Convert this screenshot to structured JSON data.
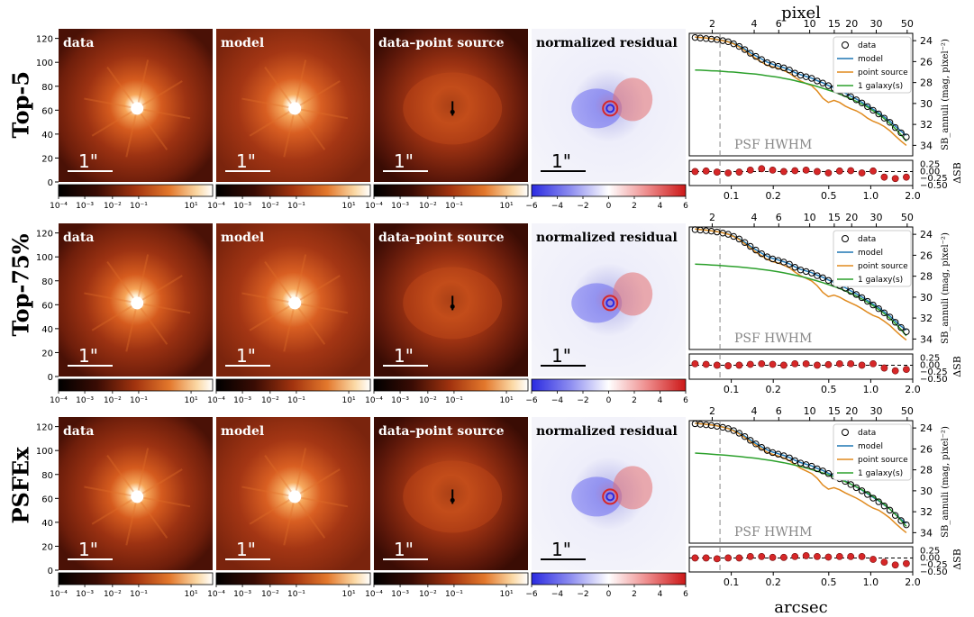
{
  "rows": [
    {
      "label": "Top-5"
    },
    {
      "label": "Top-75%"
    },
    {
      "label": "PSFEx"
    }
  ],
  "panels": {
    "titles": [
      "data",
      "model",
      "data–point source",
      "normalized residual"
    ],
    "scale_bar_label": "1\"",
    "y_ticks": [
      "0",
      "20",
      "40",
      "60",
      "80",
      "100",
      "120"
    ],
    "colorbar_log_ticks": [
      "10⁻⁴",
      "10⁻³",
      "10⁻²",
      "10⁻¹",
      "10¹"
    ],
    "colorbar_res_ticks": [
      "−6",
      "−4",
      "−2",
      "0",
      "2",
      "4",
      "6"
    ]
  },
  "profile": {
    "top_axis_label": "pixel",
    "bottom_axis_label": "arcsec",
    "top_ticks": [
      "2",
      "4",
      "6",
      "10",
      "15",
      "20",
      "30",
      "50"
    ],
    "bottom_ticks": [
      "0.1",
      "0.2",
      "0.5",
      "1.0",
      "2.0"
    ],
    "sb_ticks": [
      "24",
      "26",
      "28",
      "30",
      "32",
      "34"
    ],
    "dsb_ticks": [
      "0.25",
      "0.00",
      "−0.25",
      "−0.50"
    ],
    "ylabel_sb": "SB_annuli (mag, pixel⁻²)",
    "ylabel_dsb": "ΔSB",
    "psf_label": "PSF HWHM",
    "legend": [
      "data",
      "model",
      "point source",
      "1 galaxy(s)"
    ],
    "colors": {
      "data_edge": "#000000",
      "model": "#1f77b4",
      "point_source": "#e08a1e",
      "galaxy": "#2ca02c",
      "residual_dot": "#d62728"
    }
  },
  "chart_data": [
    {
      "type": "line",
      "title": "Top-5",
      "x_unit": "arcsec",
      "x": [
        0.055,
        0.06,
        0.066,
        0.072,
        0.079,
        0.087,
        0.095,
        0.104,
        0.114,
        0.125,
        0.137,
        0.15,
        0.165,
        0.181,
        0.198,
        0.217,
        0.238,
        0.261,
        0.286,
        0.314,
        0.344,
        0.377,
        0.413,
        0.453,
        0.497,
        0.545,
        0.598,
        0.656,
        0.719,
        0.788,
        0.864,
        0.948,
        1.04,
        1.14,
        1.25,
        1.37,
        1.5,
        1.65,
        1.8
      ],
      "series": [
        {
          "name": "data",
          "values": [
            23.7,
            23.75,
            23.8,
            23.85,
            23.9,
            24.0,
            24.1,
            24.3,
            24.55,
            24.85,
            25.2,
            25.5,
            25.8,
            26.1,
            26.3,
            26.45,
            26.6,
            26.8,
            27.1,
            27.3,
            27.45,
            27.6,
            27.85,
            28.05,
            28.3,
            28.55,
            28.8,
            29.05,
            29.35,
            29.65,
            29.95,
            30.3,
            30.65,
            31.0,
            31.4,
            31.8,
            32.3,
            32.8,
            33.2
          ]
        },
        {
          "name": "model",
          "values": [
            23.65,
            23.7,
            23.75,
            23.8,
            23.88,
            23.97,
            24.08,
            24.25,
            24.5,
            24.8,
            25.15,
            25.45,
            25.75,
            26.05,
            26.25,
            26.42,
            26.58,
            26.78,
            27.05,
            27.25,
            27.42,
            27.58,
            27.82,
            28.02,
            28.28,
            28.52,
            28.78,
            29.02,
            29.3,
            29.58,
            29.88,
            30.2,
            30.55,
            30.9,
            31.28,
            31.68,
            32.15,
            32.65,
            33.05
          ]
        },
        {
          "name": "point source",
          "values": [
            23.65,
            23.7,
            23.75,
            23.81,
            23.9,
            24.0,
            24.12,
            24.3,
            24.6,
            24.95,
            25.35,
            25.7,
            26.05,
            26.35,
            26.5,
            26.65,
            26.85,
            27.1,
            27.5,
            27.85,
            28.1,
            28.3,
            28.8,
            29.5,
            29.9,
            29.7,
            29.9,
            30.25,
            30.5,
            30.7,
            31.0,
            31.4,
            31.7,
            31.9,
            32.2,
            32.6,
            33.1,
            33.6,
            34.0
          ]
        },
        {
          "name": "1 galaxy(s)",
          "values": [
            26.8,
            26.82,
            26.85,
            26.88,
            26.9,
            26.93,
            26.97,
            27.0,
            27.05,
            27.1,
            27.15,
            27.2,
            27.27,
            27.35,
            27.42,
            27.5,
            27.6,
            27.7,
            27.82,
            27.95,
            28.08,
            28.22,
            28.38,
            28.55,
            28.72,
            28.9,
            29.1,
            29.32,
            29.55,
            29.8,
            30.05,
            30.35,
            30.7,
            31.05,
            31.45,
            31.9,
            32.4,
            33.0,
            33.6
          ]
        }
      ],
      "residual": {
        "x": [
          0.055,
          0.066,
          0.079,
          0.095,
          0.114,
          0.137,
          0.165,
          0.198,
          0.238,
          0.286,
          0.344,
          0.413,
          0.497,
          0.598,
          0.719,
          0.864,
          1.04,
          1.25,
          1.5,
          1.8
        ],
        "values": [
          0.0,
          0.02,
          -0.02,
          -0.05,
          -0.02,
          0.05,
          0.1,
          0.05,
          0.0,
          0.03,
          0.05,
          0.0,
          -0.05,
          0.02,
          0.03,
          -0.05,
          0.02,
          -0.2,
          -0.25,
          -0.2
        ]
      },
      "xlim": [
        0.05,
        2.0
      ],
      "ylim_sb": [
        35,
        23.3
      ],
      "ylim_dsb": [
        -0.5,
        0.4
      ],
      "psf_hwhm": 0.083
    },
    {
      "type": "line",
      "title": "Top-75%",
      "x_unit": "arcsec",
      "x": [
        0.055,
        0.06,
        0.066,
        0.072,
        0.079,
        0.087,
        0.095,
        0.104,
        0.114,
        0.125,
        0.137,
        0.15,
        0.165,
        0.181,
        0.198,
        0.217,
        0.238,
        0.261,
        0.286,
        0.314,
        0.344,
        0.377,
        0.413,
        0.453,
        0.497,
        0.545,
        0.598,
        0.656,
        0.719,
        0.788,
        0.864,
        0.948,
        1.04,
        1.14,
        1.25,
        1.37,
        1.5,
        1.65,
        1.8
      ],
      "series": [
        {
          "name": "data",
          "values": [
            23.55,
            23.6,
            23.65,
            23.7,
            23.78,
            23.88,
            24.0,
            24.2,
            24.45,
            24.78,
            25.15,
            25.5,
            25.85,
            26.15,
            26.35,
            26.5,
            26.65,
            26.85,
            27.15,
            27.4,
            27.55,
            27.7,
            27.95,
            28.15,
            28.4,
            28.65,
            28.9,
            29.15,
            29.45,
            29.75,
            30.05,
            30.4,
            30.75,
            31.1,
            31.5,
            31.9,
            32.4,
            32.9,
            33.3
          ]
        },
        {
          "name": "model",
          "values": [
            23.5,
            23.55,
            23.6,
            23.66,
            23.74,
            23.84,
            23.97,
            24.17,
            24.42,
            24.75,
            25.12,
            25.47,
            25.8,
            26.1,
            26.3,
            26.46,
            26.62,
            26.82,
            27.1,
            27.35,
            27.5,
            27.66,
            27.9,
            28.1,
            28.36,
            28.6,
            28.86,
            29.1,
            29.4,
            29.68,
            29.98,
            30.32,
            30.66,
            31.0,
            31.4,
            31.8,
            32.28,
            32.78,
            33.15
          ]
        },
        {
          "name": "point source",
          "values": [
            23.5,
            23.55,
            23.6,
            23.66,
            23.75,
            23.86,
            24.0,
            24.2,
            24.5,
            24.9,
            25.3,
            25.7,
            26.05,
            26.4,
            26.6,
            26.75,
            26.95,
            27.2,
            27.6,
            27.95,
            28.2,
            28.45,
            28.9,
            29.55,
            29.95,
            29.8,
            30.0,
            30.3,
            30.55,
            30.8,
            31.1,
            31.45,
            31.75,
            31.95,
            32.3,
            32.7,
            33.2,
            33.7,
            34.1
          ]
        },
        {
          "name": "1 galaxy(s)",
          "values": [
            26.85,
            26.87,
            26.9,
            26.93,
            26.96,
            27.0,
            27.04,
            27.08,
            27.12,
            27.17,
            27.22,
            27.28,
            27.35,
            27.42,
            27.5,
            27.58,
            27.68,
            27.78,
            27.9,
            28.02,
            28.15,
            28.3,
            28.45,
            28.62,
            28.8,
            28.98,
            29.18,
            29.4,
            29.64,
            29.9,
            30.18,
            30.48,
            30.82,
            31.18,
            31.58,
            32.02,
            32.52,
            33.1,
            33.7
          ]
        }
      ],
      "residual": {
        "x": [
          0.055,
          0.066,
          0.079,
          0.095,
          0.114,
          0.137,
          0.165,
          0.198,
          0.238,
          0.286,
          0.344,
          0.413,
          0.497,
          0.598,
          0.719,
          0.864,
          1.04,
          1.25,
          1.5,
          1.8
        ],
        "values": [
          0.05,
          0.03,
          0.0,
          -0.02,
          0.0,
          0.03,
          0.05,
          0.03,
          0.0,
          0.05,
          0.05,
          0.0,
          0.02,
          0.05,
          0.05,
          0.0,
          0.05,
          -0.1,
          -0.2,
          -0.15
        ]
      },
      "xlim": [
        0.05,
        2.0
      ],
      "ylim_sb": [
        35,
        23.3
      ],
      "ylim_dsb": [
        -0.5,
        0.4
      ],
      "psf_hwhm": 0.083
    },
    {
      "type": "line",
      "title": "PSFEx",
      "x_unit": "arcsec",
      "x": [
        0.055,
        0.06,
        0.066,
        0.072,
        0.079,
        0.087,
        0.095,
        0.104,
        0.114,
        0.125,
        0.137,
        0.15,
        0.165,
        0.181,
        0.198,
        0.217,
        0.238,
        0.261,
        0.286,
        0.314,
        0.344,
        0.377,
        0.413,
        0.453,
        0.497,
        0.545,
        0.598,
        0.656,
        0.719,
        0.788,
        0.864,
        0.948,
        1.04,
        1.14,
        1.25,
        1.37,
        1.5,
        1.65,
        1.8
      ],
      "series": [
        {
          "name": "data",
          "values": [
            23.6,
            23.65,
            23.7,
            23.76,
            23.84,
            23.94,
            24.06,
            24.25,
            24.5,
            24.82,
            25.18,
            25.52,
            25.85,
            26.15,
            26.35,
            26.5,
            26.65,
            26.85,
            27.12,
            27.35,
            27.5,
            27.65,
            27.9,
            28.1,
            28.35,
            28.6,
            28.85,
            29.1,
            29.4,
            29.7,
            30.0,
            30.35,
            30.7,
            31.05,
            31.45,
            31.85,
            32.35,
            32.85,
            33.25
          ]
        },
        {
          "name": "model",
          "values": [
            23.55,
            23.6,
            23.65,
            23.71,
            23.8,
            23.9,
            24.03,
            24.22,
            24.47,
            24.78,
            25.14,
            25.48,
            25.8,
            26.1,
            26.3,
            26.46,
            26.62,
            26.82,
            27.08,
            27.3,
            27.46,
            27.62,
            27.86,
            28.06,
            28.32,
            28.56,
            28.82,
            29.06,
            29.36,
            29.64,
            29.94,
            30.28,
            30.62,
            30.96,
            31.35,
            31.75,
            32.22,
            32.72,
            33.1
          ]
        },
        {
          "name": "point source",
          "values": [
            23.55,
            23.6,
            23.65,
            23.71,
            23.8,
            23.92,
            24.06,
            24.27,
            24.56,
            24.92,
            25.3,
            25.66,
            26.0,
            26.32,
            26.52,
            26.68,
            26.88,
            27.12,
            27.5,
            27.85,
            28.1,
            28.35,
            28.8,
            29.45,
            29.85,
            29.7,
            29.9,
            30.2,
            30.45,
            30.7,
            31.0,
            31.35,
            31.65,
            31.85,
            32.2,
            32.6,
            33.1,
            33.6,
            34.0
          ]
        },
        {
          "name": "1 galaxy(s)",
          "values": [
            26.4,
            26.43,
            26.46,
            26.5,
            26.54,
            26.58,
            26.62,
            26.67,
            26.72,
            26.78,
            26.84,
            26.9,
            26.97,
            27.05,
            27.13,
            27.22,
            27.32,
            27.43,
            27.55,
            27.68,
            27.82,
            27.97,
            28.13,
            28.3,
            28.48,
            28.68,
            28.9,
            29.12,
            29.36,
            29.62,
            29.9,
            30.2,
            30.54,
            30.9,
            31.3,
            31.74,
            32.25,
            32.82,
            33.4
          ]
        }
      ],
      "residual": {
        "x": [
          0.055,
          0.066,
          0.079,
          0.095,
          0.114,
          0.137,
          0.165,
          0.198,
          0.238,
          0.286,
          0.344,
          0.413,
          0.497,
          0.598,
          0.719,
          0.864,
          1.04,
          1.25,
          1.5,
          1.8
        ],
        "values": [
          0.0,
          0.0,
          -0.03,
          0.0,
          0.0,
          0.05,
          0.05,
          0.02,
          0.02,
          0.05,
          0.08,
          0.05,
          0.03,
          0.05,
          0.05,
          0.05,
          -0.05,
          -0.15,
          -0.25,
          -0.2
        ]
      },
      "xlim": [
        0.05,
        2.0
      ],
      "ylim_sb": [
        35,
        23.3
      ],
      "ylim_dsb": [
        -0.5,
        0.4
      ],
      "psf_hwhm": 0.083
    }
  ]
}
